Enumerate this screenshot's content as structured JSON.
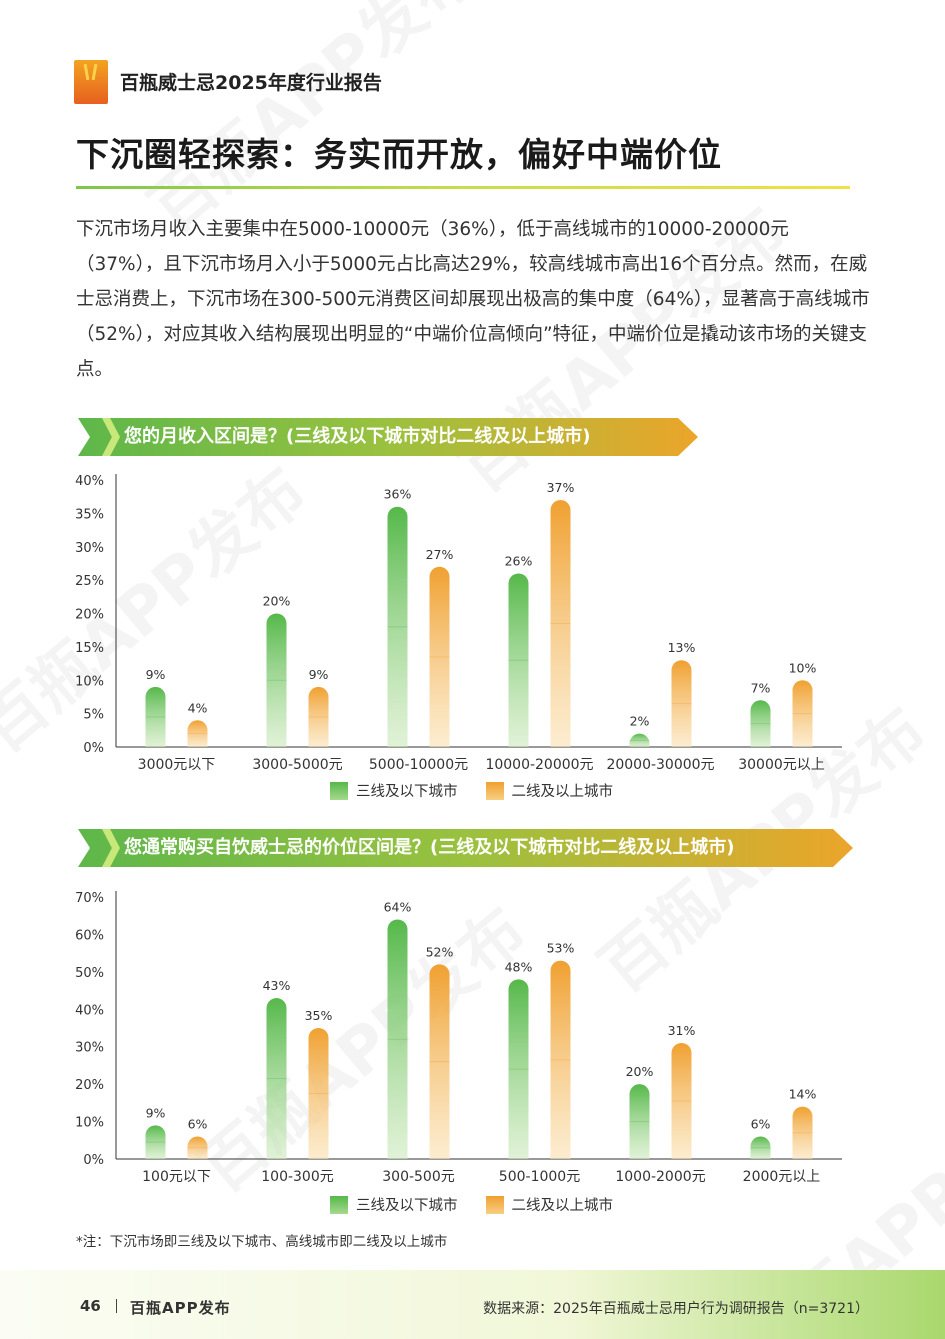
{
  "header": {
    "title": "百瓶威士忌2025年度行业报告"
  },
  "page_title": "下沉圈轻探索：务实而开放，偏好中端价位",
  "intro_text": "下沉市场月收入主要集中在5000-10000元（36%），低于高线城市的10000-20000元（37%），且下沉市场月入小于5000元占比高达29%，较高线城市高出16个百分点。然而，在威士忌消费上，下沉市场在300-500元消费区间却展现出极高的集中度（64%），显著高于高线城市（52%），对应其收入结构展现出明显的“中端价位高倾向”特征，中端价位是撬动该市场的关键支点。",
  "watermark": "百瓶APP发布",
  "legend": {
    "green_label": "三线及以下城市",
    "orange_label": "二线及以上城市"
  },
  "colors": {
    "green": "#55b84a",
    "orange": "#f0a030",
    "green_light": "#cde9bd",
    "orange_light": "#fae0b0"
  },
  "chart_data": [
    {
      "type": "bar",
      "title": "您的月收入区间是？(三线及以下城市对比二线及以上城市)",
      "categories": [
        "3000元以下",
        "3000-5000元",
        "5000-10000元",
        "10000-20000元",
        "20000-30000元",
        "30000元以上"
      ],
      "series": [
        {
          "name": "三线及以下城市",
          "values": [
            9,
            20,
            36,
            26,
            2,
            7
          ]
        },
        {
          "name": "二线及以上城市",
          "values": [
            4,
            9,
            27,
            37,
            13,
            10
          ]
        }
      ],
      "ylim": [
        0,
        40
      ],
      "yticks": [
        "0%",
        "5%",
        "10%",
        "15%",
        "20%",
        "25%",
        "30%",
        "35%",
        "40%"
      ],
      "value_suffix": "%",
      "legend": "bottom"
    },
    {
      "type": "bar",
      "title": "您通常购买自饮威士忌的价位区间是？(三线及以下城市对比二线及以上城市)",
      "categories": [
        "100元以下",
        "100-300元",
        "300-500元",
        "500-1000元",
        "1000-2000元",
        "2000元以上"
      ],
      "series": [
        {
          "name": "三线及以下城市",
          "values": [
            9,
            43,
            64,
            48,
            20,
            6
          ]
        },
        {
          "name": "二线及以上城市",
          "values": [
            6,
            35,
            52,
            53,
            31,
            14
          ]
        }
      ],
      "ylim": [
        0,
        70
      ],
      "yticks": [
        "0%",
        "10%",
        "20%",
        "30%",
        "40%",
        "50%",
        "60%",
        "70%"
      ],
      "value_suffix": "%",
      "legend": "bottom"
    }
  ],
  "footnote": "*注：下沉市场即三线及以下城市、高线城市即二线及以上城市",
  "footer": {
    "page_number": "46",
    "brand": "百瓶APP发布",
    "source": "数据来源：2025年百瓶威士忌用户行为调研报告（n=3721）"
  }
}
